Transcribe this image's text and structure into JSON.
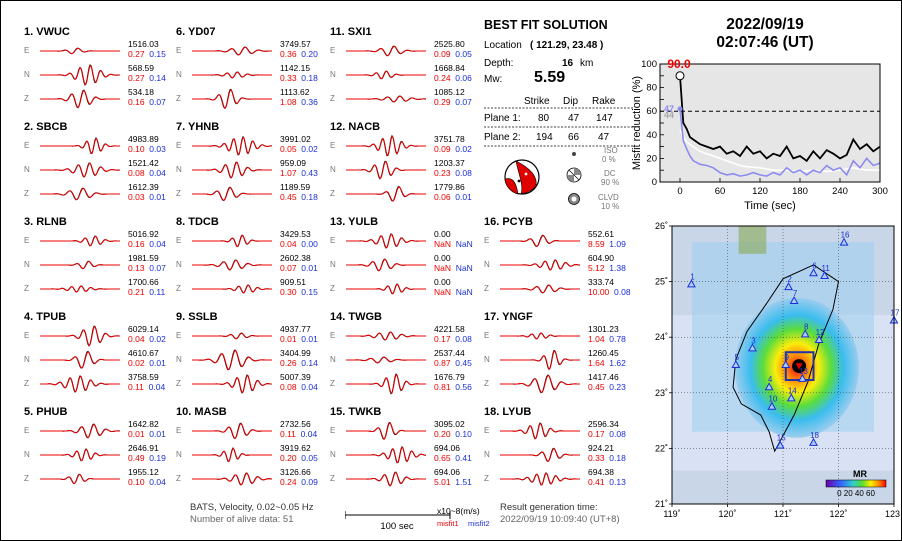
{
  "stations": [
    {
      "title": "1.  VWUC",
      "rows": [
        {
          "c": "E",
          "amp": "1516.03",
          "m1": "0.27",
          "m2": "0.15"
        },
        {
          "c": "N",
          "amp": "568.59",
          "m1": "0.27",
          "m2": "0.14"
        },
        {
          "c": "Z",
          "amp": "534.18",
          "m1": "0.16",
          "m2": "0.07"
        }
      ]
    },
    {
      "title": "2.  SBCB",
      "rows": [
        {
          "c": "E",
          "amp": "4983.89",
          "m1": "0.10",
          "m2": "0.03"
        },
        {
          "c": "N",
          "amp": "1521.42",
          "m1": "0.08",
          "m2": "0.04"
        },
        {
          "c": "Z",
          "amp": "1612.39",
          "m1": "0.03",
          "m2": "0.01"
        }
      ]
    },
    {
      "title": "3.  RLNB",
      "rows": [
        {
          "c": "E",
          "amp": "5016.92",
          "m1": "0.16",
          "m2": "0.04"
        },
        {
          "c": "N",
          "amp": "1981.59",
          "m1": "0.13",
          "m2": "0.07"
        },
        {
          "c": "Z",
          "amp": "1700.66",
          "m1": "0.21",
          "m2": "0.11"
        }
      ]
    },
    {
      "title": "4.  TPUB",
      "rows": [
        {
          "c": "E",
          "amp": "6029.14",
          "m1": "0.04",
          "m2": "0.02"
        },
        {
          "c": "N",
          "amp": "4610.67",
          "m1": "0.02",
          "m2": "0.01"
        },
        {
          "c": "Z",
          "amp": "3758.59",
          "m1": "0.11",
          "m2": "0.04"
        }
      ]
    },
    {
      "title": "5.  PHUB",
      "rows": [
        {
          "c": "E",
          "amp": "1642.82",
          "m1": "0.01",
          "m2": "0.01"
        },
        {
          "c": "N",
          "amp": "2646.91",
          "m1": "0.49",
          "m2": "0.19"
        },
        {
          "c": "Z",
          "amp": "1955.12",
          "m1": "0.10",
          "m2": "0.04"
        }
      ]
    },
    {
      "title": "6.  YD07",
      "rows": [
        {
          "c": "E",
          "amp": "3749.57",
          "m1": "0.36",
          "m2": "0.20"
        },
        {
          "c": "N",
          "amp": "1142.15",
          "m1": "0.33",
          "m2": "0.18"
        },
        {
          "c": "Z",
          "amp": "1113.62",
          "m1": "1.08",
          "m2": "0.36"
        }
      ]
    },
    {
      "title": "7.  YHNB",
      "rows": [
        {
          "c": "E",
          "amp": "3991.02",
          "m1": "0.05",
          "m2": "0.02"
        },
        {
          "c": "N",
          "amp": "959.09",
          "m1": "1.07",
          "m2": "0.43"
        },
        {
          "c": "Z",
          "amp": "1189.59",
          "m1": "0.45",
          "m2": "0.18"
        }
      ]
    },
    {
      "title": "8.  TDCB",
      "rows": [
        {
          "c": "E",
          "amp": "3429.53",
          "m1": "0.04",
          "m2": "0.00"
        },
        {
          "c": "N",
          "amp": "2602.38",
          "m1": "0.07",
          "m2": "0.01"
        },
        {
          "c": "Z",
          "amp": "909.51",
          "m1": "0.30",
          "m2": "0.15"
        }
      ]
    },
    {
      "title": "9.  SSLB",
      "rows": [
        {
          "c": "E",
          "amp": "4937.77",
          "m1": "0.01",
          "m2": "0.01"
        },
        {
          "c": "N",
          "amp": "3404.99",
          "m1": "0.26",
          "m2": "0.14"
        },
        {
          "c": "Z",
          "amp": "5007.39",
          "m1": "0.08",
          "m2": "0.04"
        }
      ]
    },
    {
      "title": "10. MASB",
      "rows": [
        {
          "c": "E",
          "amp": "2732.56",
          "m1": "0.11",
          "m2": "0.04"
        },
        {
          "c": "N",
          "amp": "3919.62",
          "m1": "0.20",
          "m2": "0.05"
        },
        {
          "c": "Z",
          "amp": "3126.66",
          "m1": "0.24",
          "m2": "0.09"
        }
      ]
    },
    {
      "title": "11. SXI1",
      "rows": [
        {
          "c": "E",
          "amp": "2525.80",
          "m1": "0.09",
          "m2": "0.05"
        },
        {
          "c": "N",
          "amp": "1668.84",
          "m1": "0.24",
          "m2": "0.06"
        },
        {
          "c": "Z",
          "amp": "1085.12",
          "m1": "0.29",
          "m2": "0.07"
        }
      ]
    },
    {
      "title": "12. NACB",
      "rows": [
        {
          "c": "E",
          "amp": "3751.78",
          "m1": "0.09",
          "m2": "0.02"
        },
        {
          "c": "N",
          "amp": "1203.37",
          "m1": "0.23",
          "m2": "0.08"
        },
        {
          "c": "Z",
          "amp": "1779.86",
          "m1": "0.06",
          "m2": "0.01"
        }
      ]
    },
    {
      "title": "13. YULB",
      "rows": [
        {
          "c": "E",
          "amp": "0.00",
          "m1": "NaN",
          "m2": "NaN"
        },
        {
          "c": "N",
          "amp": "0.00",
          "m1": "NaN",
          "m2": "NaN"
        },
        {
          "c": "Z",
          "amp": "0.00",
          "m1": "NaN",
          "m2": "NaN"
        }
      ]
    },
    {
      "title": "14. TWGB",
      "rows": [
        {
          "c": "E",
          "amp": "4221.58",
          "m1": "0.17",
          "m2": "0.08"
        },
        {
          "c": "N",
          "amp": "2537.44",
          "m1": "0.87",
          "m2": "0.45"
        },
        {
          "c": "Z",
          "amp": "1676.79",
          "m1": "0.81",
          "m2": "0.56"
        }
      ]
    },
    {
      "title": "15. TWKB",
      "rows": [
        {
          "c": "E",
          "amp": "3095.02",
          "m1": "0.20",
          "m2": "0.10"
        },
        {
          "c": "N",
          "amp": "694.06",
          "m1": "0.65",
          "m2": "0.41"
        },
        {
          "c": "Z",
          "amp": "694.06",
          "m1": "5.01",
          "m2": "1.51"
        }
      ]
    },
    {
      "title": "16. PCYB",
      "rows": [
        {
          "c": "E",
          "amp": "552.61",
          "m1": "8.59",
          "m2": "1.09"
        },
        {
          "c": "N",
          "amp": "604.90",
          "m1": "5.12",
          "m2": "1.38"
        },
        {
          "c": "Z",
          "amp": "333.74",
          "m1": "10.00",
          "m2": "0.08"
        }
      ]
    },
    {
      "title": "17. YNGF",
      "rows": [
        {
          "c": "E",
          "amp": "1301.23",
          "m1": "1.04",
          "m2": "0.78"
        },
        {
          "c": "N",
          "amp": "1260.45",
          "m1": "1.64",
          "m2": "1.62"
        },
        {
          "c": "Z",
          "amp": "1417.46",
          "m1": "0.45",
          "m2": "0.23"
        }
      ]
    },
    {
      "title": "18. LYUB",
      "rows": [
        {
          "c": "E",
          "amp": "2596.34",
          "m1": "0.17",
          "m2": "0.08"
        },
        {
          "c": "N",
          "amp": "924.21",
          "m1": "0.33",
          "m2": "0.18"
        },
        {
          "c": "Z",
          "amp": "694.38",
          "m1": "0.41",
          "m2": "0.13"
        }
      ]
    }
  ],
  "footer": {
    "line1": "BATS, Velocity, 0.02~0.05 Hz",
    "line2": "Number of alive data: 51",
    "scale_label": "100 sec",
    "units": "x10~8(m/s)",
    "misfit1_label": "misfit1",
    "misfit2_label": "misfit2",
    "result_label": "Result generation time:",
    "result_time": "2022/09/19 10:09:40 (UT+8)"
  },
  "best_fit": {
    "title": "BEST FIT SOLUTION",
    "location_label": "Location",
    "location": "( 121.29,  23.48 )",
    "depth_label": "Depth:",
    "depth_value": "16",
    "depth_unit": "km",
    "mw_label": "Mw:",
    "mw_value": "5.59",
    "col_strike": "Strike",
    "col_dip": "Dip",
    "col_rake": "Rake",
    "plane1_label": "Plane 1:",
    "plane1": [
      "80",
      "47",
      "147"
    ],
    "plane2_label": "Plane 2:",
    "plane2": [
      "194",
      "66",
      "47"
    ],
    "iso_label": "ISO",
    "iso_value": "0 %",
    "dc_label": "DC",
    "dc_value": "90 %",
    "clvd_label": "CLVD",
    "clvd_value": "10 %"
  },
  "datetime": {
    "date": "2022/09/19",
    "time": "02:07:46  (UT)"
  },
  "chart_data": {
    "type": "line",
    "xlabel": "Time (sec)",
    "ylabel": "Misfit reduction (%)",
    "xlim": [
      -30,
      300
    ],
    "ylim": [
      0,
      100
    ],
    "xticks": [
      "0",
      "60",
      "120",
      "180",
      "240",
      "300"
    ],
    "yticks": [
      "0",
      "10",
      "20",
      "30",
      "40",
      "50",
      "60",
      "70",
      "80",
      "90",
      "100"
    ],
    "threshold": 60,
    "peak_label": "90.0",
    "label_white": "44",
    "label_blue": "47",
    "series": [
      {
        "color": "#000000",
        "x": [
          0,
          5,
          10,
          15,
          20,
          30,
          40,
          50,
          60,
          70,
          80,
          90,
          100,
          110,
          120,
          130,
          140,
          150,
          160,
          170,
          180,
          190,
          200,
          210,
          220,
          230,
          240,
          250,
          260,
          270,
          280,
          290,
          300
        ],
        "y": [
          90,
          50,
          45,
          38,
          36,
          32,
          30,
          28,
          30,
          24,
          26,
          22,
          30,
          24,
          26,
          20,
          24,
          22,
          30,
          20,
          22,
          18,
          26,
          20,
          27,
          24,
          20,
          23,
          36,
          28,
          32,
          26,
          30
        ]
      },
      {
        "color": "#ffffff",
        "x": [
          0,
          5,
          10,
          20,
          30,
          40,
          50,
          60,
          70,
          80,
          90,
          100,
          120,
          140,
          160,
          180,
          200,
          220,
          240,
          260,
          280,
          300
        ],
        "y": [
          44,
          38,
          34,
          30,
          26,
          24,
          22,
          20,
          18,
          16,
          14,
          13,
          12,
          10,
          10,
          9,
          10,
          9,
          10,
          12,
          10,
          10
        ]
      },
      {
        "color": "#8b8bf0",
        "x": [
          0,
          5,
          10,
          15,
          20,
          30,
          40,
          50,
          60,
          70,
          80,
          90,
          100,
          110,
          120,
          130,
          140,
          150,
          160,
          170,
          180,
          190,
          200,
          210,
          220,
          230,
          240,
          250,
          260,
          270,
          280,
          290,
          300
        ],
        "y": [
          62,
          35,
          28,
          22,
          18,
          15,
          14,
          12,
          8,
          6,
          7,
          5,
          6,
          8,
          6,
          5,
          8,
          6,
          12,
          8,
          10,
          6,
          10,
          8,
          14,
          10,
          12,
          6,
          18,
          12,
          20,
          14,
          16
        ]
      }
    ]
  },
  "map": {
    "xticks": [
      "119˚",
      "120˚",
      "121˚",
      "122˚",
      "123˚"
    ],
    "yticks": [
      "26˚",
      "25˚",
      "24˚",
      "23˚",
      "22˚",
      "21˚"
    ],
    "colorbar_title": "MR",
    "colorbar_ticks": "0 20 40 60",
    "stations": [
      {
        "id": "1",
        "lon": 119.35,
        "lat": 24.95
      },
      {
        "id": "2",
        "lon": 121.1,
        "lat": 24.9
      },
      {
        "id": "3",
        "lon": 120.45,
        "lat": 23.8
      },
      {
        "id": "4",
        "lon": 120.75,
        "lat": 23.1
      },
      {
        "id": "5",
        "lon": 120.15,
        "lat": 23.5
      },
      {
        "id": "6",
        "lon": 121.55,
        "lat": 25.15
      },
      {
        "id": "7",
        "lon": 121.2,
        "lat": 24.65
      },
      {
        "id": "8",
        "lon": 121.4,
        "lat": 24.05
      },
      {
        "id": "9",
        "lon": 121.05,
        "lat": 23.5
      },
      {
        "id": "10",
        "lon": 120.8,
        "lat": 22.75
      },
      {
        "id": "11",
        "lon": 121.75,
        "lat": 25.1
      },
      {
        "id": "12",
        "lon": 121.65,
        "lat": 23.95
      },
      {
        "id": "13",
        "lon": 121.35,
        "lat": 23.25
      },
      {
        "id": "14",
        "lon": 121.15,
        "lat": 22.9
      },
      {
        "id": "15",
        "lon": 120.95,
        "lat": 22.05
      },
      {
        "id": "16",
        "lon": 122.1,
        "lat": 25.7
      },
      {
        "id": "17",
        "lon": 123.0,
        "lat": 24.3
      },
      {
        "id": "18",
        "lon": 121.55,
        "lat": 22.1
      }
    ]
  }
}
